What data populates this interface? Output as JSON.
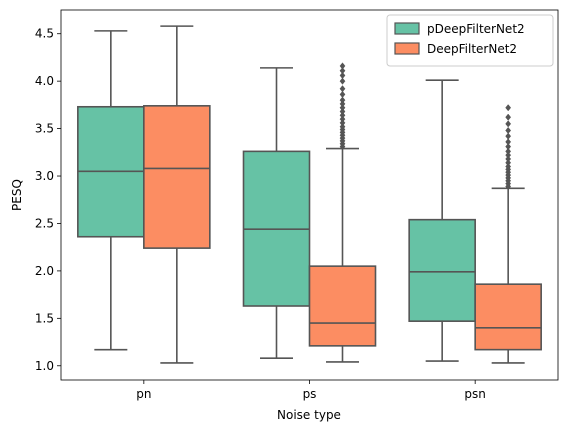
{
  "chart_data": {
    "type": "box",
    "xlabel": "Noise type",
    "ylabel": "PESQ",
    "categories": [
      "pn",
      "ps",
      "psn"
    ],
    "ylim": [
      0.85,
      4.75
    ],
    "yticks": [
      "1.0",
      "1.5",
      "2.0",
      "2.5",
      "3.0",
      "3.5",
      "4.0",
      "4.5"
    ],
    "legend_position": "top-right",
    "series": [
      {
        "name": "pDeepFilterNet2",
        "color": "#66c2a5",
        "boxes": [
          {
            "whislo": 1.17,
            "q1": 2.36,
            "med": 3.05,
            "q3": 3.73,
            "whishi": 4.53,
            "fliers": []
          },
          {
            "whislo": 1.08,
            "q1": 1.63,
            "med": 2.44,
            "q3": 3.26,
            "whishi": 4.14,
            "fliers": []
          },
          {
            "whislo": 1.05,
            "q1": 1.47,
            "med": 1.99,
            "q3": 2.54,
            "whishi": 4.01,
            "fliers": []
          }
        ]
      },
      {
        "name": "DeepFilterNet2",
        "color": "#fc8d62",
        "boxes": [
          {
            "whislo": 1.03,
            "q1": 2.24,
            "med": 3.08,
            "q3": 3.74,
            "whishi": 4.58,
            "fliers": []
          },
          {
            "whislo": 1.04,
            "q1": 1.21,
            "med": 1.45,
            "q3": 2.05,
            "whishi": 3.29,
            "fliers": [
              3.31,
              3.34,
              3.37,
              3.4,
              3.43,
              3.46,
              3.49,
              3.52,
              3.56,
              3.6,
              3.64,
              3.68,
              3.72,
              3.76,
              3.8,
              3.86,
              3.92,
              4.0,
              4.06,
              4.11,
              4.16
            ]
          },
          {
            "whislo": 1.03,
            "q1": 1.17,
            "med": 1.4,
            "q3": 1.86,
            "whishi": 2.87,
            "fliers": [
              2.89,
              2.92,
              2.95,
              2.98,
              3.01,
              3.04,
              3.07,
              3.1,
              3.14,
              3.18,
              3.22,
              3.26,
              3.31,
              3.36,
              3.42,
              3.48,
              3.55,
              3.62,
              3.72
            ]
          }
        ]
      }
    ]
  }
}
